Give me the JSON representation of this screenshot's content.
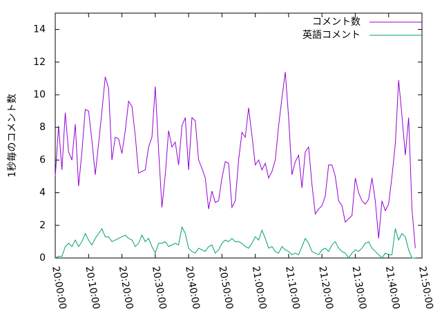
{
  "chart_data": {
    "type": "line",
    "ylabel": "1秒毎のコメント数",
    "x": [
      "20:00:00",
      "20:01:00",
      "20:02:00",
      "20:03:00",
      "20:04:00",
      "20:05:00",
      "20:06:00",
      "20:07:00",
      "20:08:00",
      "20:09:00",
      "20:10:00",
      "20:11:00",
      "20:12:00",
      "20:13:00",
      "20:14:00",
      "20:15:00",
      "20:16:00",
      "20:17:00",
      "20:18:00",
      "20:19:00",
      "20:20:00",
      "20:21:00",
      "20:22:00",
      "20:23:00",
      "20:24:00",
      "20:25:00",
      "20:26:00",
      "20:27:00",
      "20:28:00",
      "20:29:00",
      "20:30:00",
      "20:31:00",
      "20:32:00",
      "20:33:00",
      "20:34:00",
      "20:35:00",
      "20:36:00",
      "20:37:00",
      "20:38:00",
      "20:39:00",
      "20:40:00",
      "20:41:00",
      "20:42:00",
      "20:43:00",
      "20:44:00",
      "20:45:00",
      "20:46:00",
      "20:47:00",
      "20:48:00",
      "20:49:00",
      "20:50:00",
      "20:51:00",
      "20:52:00",
      "20:53:00",
      "20:54:00",
      "20:55:00",
      "20:56:00",
      "20:57:00",
      "20:58:00",
      "20:59:00",
      "21:00:00",
      "21:01:00",
      "21:02:00",
      "21:03:00",
      "21:04:00",
      "21:05:00",
      "21:06:00",
      "21:07:00",
      "21:08:00",
      "21:09:00",
      "21:10:00",
      "21:11:00",
      "21:12:00",
      "21:13:00",
      "21:14:00",
      "21:15:00",
      "21:16:00",
      "21:17:00",
      "21:18:00",
      "21:19:00",
      "21:20:00",
      "21:21:00",
      "21:22:00",
      "21:23:00",
      "21:24:00",
      "21:25:00",
      "21:26:00",
      "21:27:00",
      "21:28:00",
      "21:29:00",
      "21:30:00",
      "21:31:00",
      "21:32:00",
      "21:33:00",
      "21:34:00",
      "21:35:00",
      "21:36:00",
      "21:37:00",
      "21:38:00",
      "21:39:00",
      "21:40:00",
      "21:41:00",
      "21:42:00",
      "21:43:00",
      "21:44:00",
      "21:45:00",
      "21:46:00",
      "21:47:00",
      "21:48:00"
    ],
    "series": [
      {
        "name": "コメント数",
        "color": "#9400d3",
        "values": [
          5.0,
          8.1,
          5.4,
          8.9,
          6.5,
          6.0,
          8.2,
          4.4,
          6.5,
          9.1,
          9.0,
          7.2,
          5.1,
          7.0,
          9.0,
          11.1,
          10.4,
          6.0,
          7.4,
          7.3,
          6.4,
          7.8,
          9.6,
          9.3,
          7.5,
          5.2,
          5.3,
          5.4,
          6.8,
          7.4,
          10.5,
          6.6,
          3.1,
          5.1,
          7.8,
          6.8,
          7.1,
          5.7,
          8.1,
          8.6,
          5.4,
          8.6,
          8.4,
          6.0,
          5.5,
          4.9,
          3.0,
          4.1,
          3.4,
          3.5,
          4.9,
          5.9,
          5.8,
          3.1,
          3.5,
          6.0,
          7.7,
          7.4,
          9.2,
          7.5,
          5.7,
          6.0,
          5.4,
          5.8,
          4.9,
          5.3,
          6.0,
          8.1,
          9.8,
          11.4,
          8.6,
          5.1,
          5.9,
          6.3,
          4.3,
          6.5,
          6.8,
          4.5,
          2.7,
          3.0,
          3.2,
          3.8,
          5.7,
          5.7,
          5.0,
          3.5,
          3.2,
          2.2,
          2.4,
          2.6,
          4.9,
          4.0,
          3.5,
          3.3,
          3.6,
          4.9,
          3.5,
          1.2,
          3.5,
          2.9,
          3.3,
          5.0,
          7.0,
          10.9,
          8.7,
          6.3,
          8.6,
          3.0,
          0.6
        ]
      },
      {
        "name": "英語コメント",
        "color": "#009e73",
        "values": [
          0.0,
          0.1,
          0.1,
          0.7,
          0.9,
          0.7,
          1.1,
          0.7,
          1.0,
          1.5,
          1.1,
          0.8,
          1.2,
          1.5,
          1.8,
          1.3,
          1.3,
          1.0,
          1.1,
          1.2,
          1.3,
          1.4,
          1.2,
          1.1,
          0.7,
          0.9,
          1.4,
          1.0,
          1.2,
          0.7,
          0.3,
          0.9,
          0.9,
          1.0,
          0.7,
          0.8,
          0.9,
          0.8,
          1.9,
          1.5,
          0.6,
          0.4,
          0.3,
          0.6,
          0.5,
          0.4,
          0.7,
          0.8,
          0.3,
          0.5,
          0.9,
          1.1,
          1.0,
          1.2,
          1.0,
          1.0,
          0.9,
          0.7,
          0.6,
          0.9,
          1.3,
          1.1,
          1.7,
          1.2,
          0.6,
          0.7,
          0.4,
          0.3,
          0.7,
          0.5,
          0.4,
          0.2,
          0.3,
          0.2,
          0.7,
          1.2,
          0.9,
          0.4,
          0.3,
          0.2,
          0.5,
          0.6,
          0.4,
          0.8,
          1.0,
          0.6,
          0.4,
          0.3,
          0.0,
          0.3,
          0.5,
          0.4,
          0.6,
          0.9,
          1.0,
          0.6,
          0.4,
          0.2,
          0.0,
          0.3,
          0.2,
          0.2,
          1.8,
          1.1,
          1.5,
          1.3,
          0.5,
          0.0,
          0.0
        ]
      }
    ],
    "xlim": [
      "20:00:00",
      "21:50:00"
    ],
    "xticks": [
      "20:00:00",
      "20:10:00",
      "20:20:00",
      "20:30:00",
      "20:40:00",
      "20:50:00",
      "21:00:00",
      "21:10:00",
      "21:20:00",
      "21:30:00",
      "21:40:00",
      "21:50:00"
    ],
    "ylim": [
      0,
      15
    ],
    "yticks": [
      0,
      2,
      4,
      6,
      8,
      10,
      12,
      14
    ],
    "legend": "top-right"
  }
}
